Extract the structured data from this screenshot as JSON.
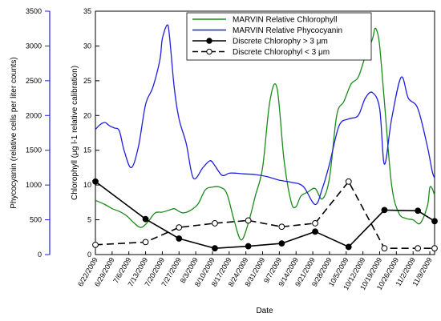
{
  "chart_data": {
    "type": "line",
    "xlabel": "Date",
    "ylabel_left": "Chlorophyll (μg l-1 relative calibration)",
    "ylabel_far_left": "Phycocyanin (relative cells per liter counts)",
    "ylim_left": [
      0,
      35
    ],
    "yticks_left": [
      "0",
      "5",
      "10",
      "15",
      "20",
      "25",
      "30",
      "35"
    ],
    "ylim_far_left": [
      0,
      3500
    ],
    "yticks_far_left": [
      "0",
      "500",
      "1000",
      "1500",
      "2000",
      "2500",
      "3000",
      "3500"
    ],
    "x_tick_labels": [
      "6/22/2009",
      "6/29/2009",
      "7/6/2009",
      "7/13/2009",
      "7/20/2009",
      "7/27/2009",
      "8/3/2009",
      "8/10/2009",
      "8/17/2009",
      "8/24/2009",
      "8/31/2009",
      "9/7/2009",
      "9/14/2009",
      "9/21/2009",
      "9/28/2009",
      "10/5/2009",
      "10/12/2009",
      "10/19/2009",
      "10/26/2009",
      "11/2/2009",
      "11/9/2009"
    ],
    "x_range_days": [
      0,
      142
    ],
    "grid": false,
    "legend_position": "top-right",
    "series": [
      {
        "name": "MARVIN Relative Chlorophyll",
        "axis": "left",
        "color": "#1a8a1a",
        "style": "solid",
        "x": [
          0,
          4,
          7,
          10,
          13,
          16,
          19,
          22,
          25,
          28,
          31,
          33,
          35,
          37,
          40,
          43,
          46,
          49,
          52,
          55,
          58,
          61,
          64,
          67,
          70,
          73,
          76,
          79,
          82,
          84,
          86,
          89,
          92,
          95,
          98,
          101,
          104,
          107,
          110,
          113,
          116,
          117,
          118,
          119,
          121,
          124,
          127,
          130,
          133,
          136,
          139,
          140,
          141,
          142
        ],
        "y": [
          7.8,
          7.2,
          6.6,
          6.2,
          5.6,
          4.6,
          3.9,
          4.7,
          6.0,
          6.1,
          6.4,
          6.6,
          6.2,
          6.0,
          6.4,
          7.3,
          9.3,
          9.7,
          9.7,
          8.8,
          5.0,
          2.1,
          4.5,
          8.5,
          12.5,
          22.0,
          24.0,
          13.5,
          7.5,
          6.9,
          8.4,
          9.0,
          9.5,
          8.0,
          11.0,
          20.0,
          22.0,
          24.5,
          25.5,
          28.5,
          31.0,
          32.5,
          32.0,
          30.0,
          22.0,
          10.0,
          6.0,
          5.2,
          5.0,
          4.5,
          7.0,
          9.6,
          9.5,
          8.5
        ]
      },
      {
        "name": "MARVIN Relative Phycocyanin",
        "axis": "left",
        "color": "#1f1fe0",
        "style": "solid",
        "x": [
          0,
          2,
          4,
          6,
          8,
          10,
          12,
          15,
          18,
          21,
          24,
          27,
          28,
          30,
          31,
          33,
          35,
          38,
          41,
          45,
          48,
          50,
          53,
          56,
          59,
          62,
          67,
          72,
          77,
          82,
          87,
          92,
          95,
          98,
          102,
          106,
          110,
          113,
          116,
          119,
          121,
          124,
          128,
          131,
          135,
          139,
          141,
          142
        ],
        "y": [
          18.0,
          18.7,
          19.0,
          18.5,
          18.2,
          17.8,
          15.0,
          12.5,
          15.5,
          21.6,
          24.0,
          28.0,
          31.0,
          33.0,
          31.5,
          24.0,
          19.5,
          16.0,
          11.0,
          12.5,
          13.5,
          12.8,
          11.4,
          11.7,
          11.7,
          11.6,
          11.5,
          11.2,
          10.7,
          10.4,
          9.8,
          7.2,
          9.5,
          13.0,
          18.5,
          19.5,
          20.0,
          22.5,
          23.3,
          21.0,
          13.0,
          19.5,
          25.5,
          22.5,
          21.0,
          15.5,
          12.0,
          11.0
        ]
      },
      {
        "name": "Discrete Chlorophy > 3 μm",
        "axis": "left",
        "color": "#000000",
        "style": "solid",
        "marker": "filled-circle",
        "x": [
          0,
          21,
          35,
          50,
          64,
          78,
          92,
          106,
          121,
          135,
          142
        ],
        "y": [
          10.5,
          5.1,
          2.3,
          0.9,
          1.2,
          1.6,
          3.3,
          1.1,
          6.4,
          6.3,
          4.8
        ]
      },
      {
        "name": "Discrete Chlorophyl < 3 μm",
        "axis": "left",
        "color": "#000000",
        "style": "dashed",
        "marker": "open-circle",
        "x": [
          0,
          21,
          35,
          50,
          64,
          78,
          92,
          106,
          121,
          135,
          142
        ],
        "y": [
          1.4,
          1.8,
          3.9,
          4.5,
          4.9,
          4.0,
          4.5,
          10.5,
          0.9,
          0.9,
          0.9
        ]
      }
    ]
  }
}
